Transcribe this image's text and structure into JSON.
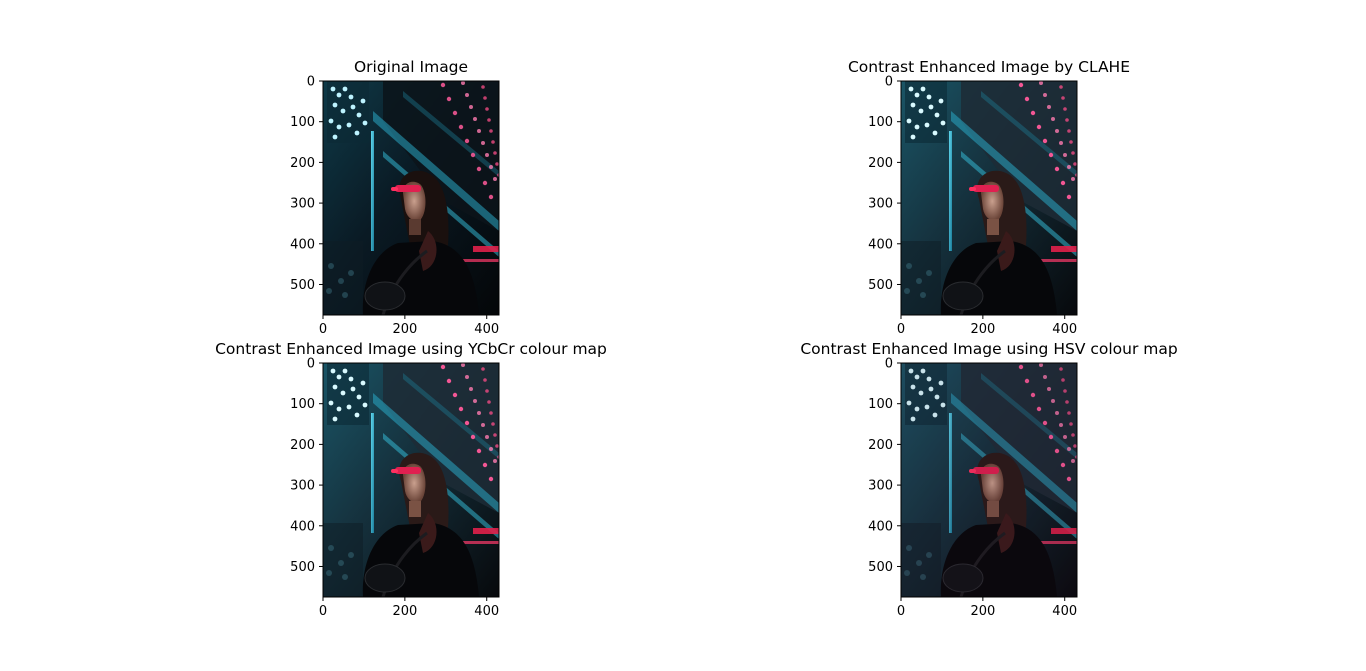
{
  "figure": {
    "background": "#ffffff"
  },
  "chart_data": [
    {
      "type": "image",
      "title": "Original Image",
      "xticks": [
        0,
        200,
        400
      ],
      "yticks": [
        0,
        100,
        200,
        300,
        400,
        500
      ],
      "xlim": [
        0,
        430
      ],
      "ylim": [
        575,
        0
      ],
      "variant": "original"
    },
    {
      "type": "image",
      "title": "Contrast Enhanced Image by CLAHE",
      "xticks": [
        0,
        200,
        400
      ],
      "yticks": [
        0,
        100,
        200,
        300,
        400,
        500
      ],
      "xlim": [
        0,
        430
      ],
      "ylim": [
        575,
        0
      ],
      "variant": "clahe"
    },
    {
      "type": "image",
      "title": "Contrast Enhanced Image using YCbCr colour map",
      "xticks": [
        0,
        200,
        400
      ],
      "yticks": [
        0,
        100,
        200,
        300,
        400,
        500
      ],
      "xlim": [
        0,
        430
      ],
      "ylim": [
        575,
        0
      ],
      "variant": "ycbcr"
    },
    {
      "type": "image",
      "title": "Contrast Enhanced Image using HSV colour map",
      "xticks": [
        0,
        200,
        400
      ],
      "yticks": [
        0,
        100,
        200,
        300,
        400,
        500
      ],
      "xlim": [
        0,
        430
      ],
      "ylim": [
        575,
        0
      ],
      "variant": "hsv"
    }
  ]
}
